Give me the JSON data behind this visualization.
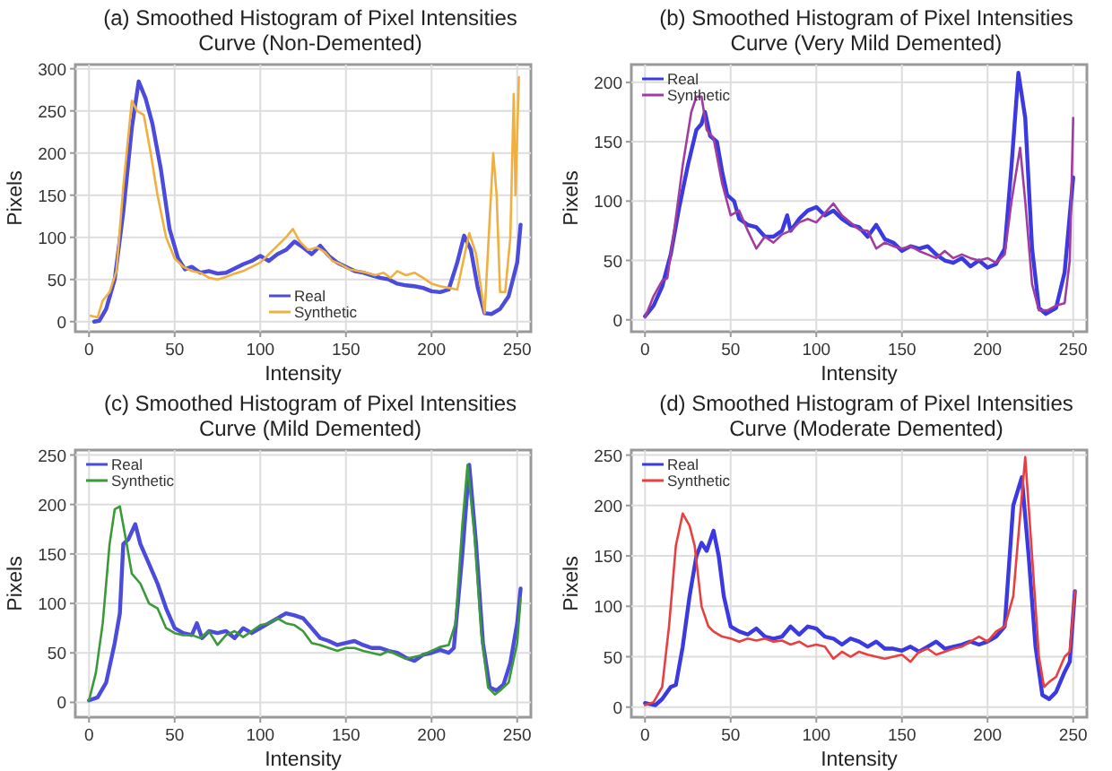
{
  "chart_data": [
    {
      "type": "line",
      "title": "(a) Smoothed Histogram of Pixel Intensities Curve (Non-Demented)",
      "xlabel": "Intensity",
      "ylabel": "Pixels",
      "xlim": [
        -8,
        258
      ],
      "ylim": [
        -12,
        305
      ],
      "xticks": [
        0,
        50,
        100,
        150,
        200,
        250
      ],
      "yticks": [
        0,
        50,
        100,
        150,
        200,
        250,
        300
      ],
      "grid": true,
      "legend": "bottom",
      "series": [
        {
          "name": "Real",
          "color": "#4b4bdc",
          "x": [
            3,
            6,
            10,
            15,
            20,
            25,
            29,
            33,
            37,
            42,
            47,
            52,
            56,
            60,
            65,
            70,
            75,
            80,
            85,
            90,
            95,
            100,
            105,
            110,
            115,
            120,
            125,
            130,
            135,
            140,
            145,
            150,
            155,
            160,
            165,
            170,
            175,
            180,
            185,
            190,
            195,
            200,
            205,
            210,
            215,
            219,
            223,
            227,
            231,
            235,
            240,
            245,
            250,
            252
          ],
          "values": [
            0,
            1,
            15,
            50,
            130,
            230,
            285,
            265,
            235,
            180,
            110,
            75,
            62,
            65,
            58,
            60,
            57,
            58,
            63,
            68,
            72,
            78,
            72,
            80,
            85,
            95,
            88,
            80,
            90,
            78,
            70,
            65,
            60,
            58,
            55,
            52,
            50,
            45,
            43,
            42,
            40,
            36,
            35,
            38,
            70,
            102,
            85,
            40,
            10,
            9,
            15,
            30,
            70,
            115
          ]
        },
        {
          "name": "Synthetic",
          "color": "#f0b040",
          "x": [
            1,
            5,
            8,
            12,
            16,
            20,
            25,
            28,
            32,
            36,
            40,
            45,
            50,
            55,
            60,
            65,
            70,
            75,
            80,
            85,
            90,
            95,
            100,
            105,
            110,
            115,
            119,
            123,
            128,
            133,
            138,
            142,
            147,
            152,
            157,
            162,
            167,
            172,
            176,
            180,
            185,
            190,
            195,
            200,
            205,
            210,
            215,
            222,
            226,
            231,
            236,
            238,
            240,
            243,
            246,
            248,
            249,
            251
          ],
          "values": [
            7,
            5,
            25,
            35,
            60,
            160,
            262,
            250,
            245,
            200,
            150,
            100,
            75,
            65,
            60,
            58,
            52,
            50,
            53,
            57,
            60,
            65,
            70,
            80,
            90,
            100,
            110,
            95,
            85,
            88,
            82,
            72,
            68,
            62,
            60,
            58,
            55,
            58,
            52,
            60,
            55,
            58,
            52,
            45,
            42,
            40,
            38,
            105,
            80,
            10,
            200,
            150,
            35,
            35,
            100,
            270,
            150,
            290
          ]
        }
      ]
    },
    {
      "type": "line",
      "title": "(b) Smoothed Histogram of Pixel Intensities Curve (Very Mild Demented)",
      "xlabel": "Intensity",
      "ylabel": "Pixels",
      "xlim": [
        -8,
        258
      ],
      "ylim": [
        -10,
        215
      ],
      "xticks": [
        0,
        50,
        100,
        150,
        200,
        250
      ],
      "yticks": [
        0,
        50,
        100,
        150,
        200
      ],
      "grid": true,
      "legend": "top left",
      "series": [
        {
          "name": "Real",
          "color": "#3a3ae0",
          "x": [
            0,
            5,
            10,
            15,
            20,
            25,
            30,
            33,
            35,
            38,
            42,
            45,
            48,
            52,
            55,
            60,
            65,
            70,
            75,
            80,
            83,
            85,
            90,
            95,
            100,
            105,
            110,
            115,
            120,
            125,
            130,
            135,
            140,
            145,
            150,
            155,
            160,
            165,
            170,
            175,
            180,
            185,
            190,
            195,
            200,
            205,
            210,
            214,
            218,
            222,
            226,
            230,
            234,
            240,
            245,
            250
          ],
          "values": [
            3,
            12,
            28,
            55,
            95,
            130,
            160,
            165,
            175,
            155,
            150,
            125,
            105,
            100,
            85,
            80,
            78,
            70,
            70,
            75,
            88,
            75,
            85,
            92,
            95,
            88,
            92,
            85,
            80,
            78,
            70,
            80,
            68,
            65,
            58,
            62,
            60,
            62,
            55,
            50,
            48,
            52,
            45,
            50,
            44,
            47,
            60,
            130,
            208,
            170,
            60,
            10,
            5,
            10,
            40,
            120
          ]
        },
        {
          "name": "Synthetic",
          "color": "#a03d9f",
          "x": [
            0,
            5,
            10,
            13,
            17,
            22,
            27,
            30,
            33,
            36,
            40,
            45,
            50,
            55,
            60,
            65,
            70,
            75,
            80,
            85,
            90,
            95,
            100,
            105,
            110,
            115,
            120,
            125,
            130,
            135,
            140,
            145,
            150,
            155,
            160,
            165,
            170,
            175,
            180,
            185,
            190,
            195,
            200,
            205,
            210,
            214,
            219,
            222,
            226,
            230,
            235,
            240,
            245,
            248,
            250
          ],
          "values": [
            2,
            20,
            33,
            35,
            75,
            130,
            175,
            188,
            188,
            160,
            153,
            115,
            88,
            92,
            75,
            60,
            70,
            65,
            72,
            75,
            82,
            85,
            82,
            90,
            98,
            88,
            82,
            76,
            75,
            60,
            65,
            62,
            60,
            62,
            58,
            55,
            52,
            58,
            52,
            55,
            52,
            50,
            52,
            48,
            55,
            100,
            145,
            100,
            30,
            8,
            8,
            12,
            14,
            50,
            170
          ]
        }
      ]
    },
    {
      "type": "line",
      "title": "(c) Smoothed Histogram of Pixel Intensities Curve (Mild Demented)",
      "xlabel": "Intensity",
      "ylabel": "Pixels",
      "xlim": [
        -8,
        258
      ],
      "ylim": [
        -15,
        255
      ],
      "xticks": [
        0,
        50,
        100,
        150,
        200,
        250
      ],
      "yticks": [
        0,
        50,
        100,
        150,
        200,
        250
      ],
      "grid": true,
      "legend": "top left",
      "series": [
        {
          "name": "Real",
          "color": "#4b4bdc",
          "x": [
            0,
            5,
            10,
            15,
            18,
            20,
            23,
            27,
            30,
            35,
            40,
            45,
            50,
            55,
            60,
            63,
            66,
            70,
            75,
            80,
            85,
            90,
            95,
            100,
            105,
            110,
            115,
            120,
            125,
            130,
            135,
            140,
            145,
            150,
            155,
            160,
            165,
            170,
            175,
            180,
            185,
            190,
            195,
            200,
            205,
            210,
            213,
            218,
            222,
            226,
            230,
            234,
            238,
            242,
            246,
            250,
            252
          ],
          "values": [
            2,
            5,
            20,
            60,
            90,
            160,
            165,
            180,
            160,
            140,
            120,
            95,
            75,
            70,
            68,
            80,
            65,
            72,
            70,
            72,
            65,
            75,
            70,
            75,
            80,
            85,
            90,
            88,
            85,
            75,
            65,
            62,
            58,
            60,
            62,
            58,
            55,
            55,
            52,
            50,
            45,
            42,
            48,
            50,
            53,
            50,
            55,
            150,
            240,
            160,
            60,
            15,
            12,
            18,
            40,
            80,
            115
          ]
        },
        {
          "name": "Synthetic",
          "color": "#3a9a3a",
          "x": [
            0,
            4,
            8,
            12,
            15,
            18,
            22,
            25,
            30,
            35,
            40,
            45,
            50,
            55,
            60,
            65,
            70,
            75,
            80,
            85,
            90,
            95,
            100,
            105,
            110,
            115,
            120,
            125,
            130,
            135,
            140,
            145,
            150,
            155,
            160,
            165,
            170,
            175,
            180,
            185,
            190,
            195,
            200,
            205,
            210,
            214,
            218,
            221,
            225,
            229,
            233,
            237,
            240,
            245,
            250,
            252
          ],
          "values": [
            2,
            30,
            80,
            160,
            195,
            198,
            160,
            130,
            120,
            100,
            95,
            75,
            70,
            68,
            68,
            65,
            72,
            58,
            68,
            72,
            66,
            72,
            78,
            80,
            85,
            80,
            78,
            72,
            60,
            58,
            55,
            52,
            55,
            55,
            52,
            50,
            48,
            52,
            48,
            44,
            46,
            48,
            52,
            56,
            58,
            80,
            180,
            240,
            170,
            70,
            15,
            8,
            12,
            20,
            60,
            105
          ]
        }
      ]
    },
    {
      "type": "line",
      "title": "(d) Smoothed Histogram of Pixel Intensities Curve (Moderate Demented)",
      "xlabel": "Intensity",
      "ylabel": "Pixels",
      "xlim": [
        -8,
        258
      ],
      "ylim": [
        -10,
        255
      ],
      "xticks": [
        0,
        50,
        100,
        150,
        200,
        250
      ],
      "yticks": [
        0,
        50,
        100,
        150,
        200,
        250
      ],
      "grid": true,
      "legend": "top left",
      "series": [
        {
          "name": "Real",
          "color": "#3a3ae0",
          "x": [
            0,
            3,
            6,
            10,
            15,
            18,
            22,
            26,
            30,
            33,
            36,
            40,
            43,
            46,
            50,
            55,
            60,
            65,
            70,
            75,
            80,
            85,
            90,
            95,
            100,
            105,
            110,
            115,
            120,
            125,
            130,
            135,
            140,
            145,
            150,
            155,
            160,
            165,
            170,
            175,
            180,
            185,
            190,
            195,
            200,
            205,
            210,
            215,
            220,
            224,
            228,
            232,
            236,
            240,
            245,
            248,
            251
          ],
          "values": [
            4,
            3,
            2,
            8,
            20,
            22,
            60,
            110,
            150,
            163,
            155,
            175,
            150,
            110,
            80,
            75,
            72,
            78,
            70,
            68,
            70,
            80,
            72,
            80,
            78,
            70,
            68,
            62,
            68,
            65,
            60,
            65,
            58,
            58,
            56,
            60,
            55,
            60,
            65,
            58,
            60,
            62,
            65,
            62,
            65,
            70,
            80,
            200,
            228,
            150,
            60,
            12,
            8,
            15,
            35,
            45,
            115
          ]
        },
        {
          "name": "Synthetic",
          "color": "#e84040",
          "x": [
            0,
            5,
            10,
            14,
            18,
            22,
            26,
            29,
            33,
            37,
            40,
            45,
            50,
            55,
            60,
            65,
            70,
            75,
            80,
            85,
            90,
            95,
            100,
            105,
            110,
            115,
            120,
            125,
            130,
            135,
            140,
            145,
            150,
            155,
            160,
            165,
            170,
            175,
            180,
            185,
            190,
            195,
            200,
            205,
            210,
            215,
            219,
            222,
            226,
            230,
            233,
            236,
            240,
            245,
            248,
            251
          ],
          "values": [
            2,
            5,
            20,
            80,
            160,
            192,
            180,
            160,
            100,
            80,
            75,
            70,
            68,
            65,
            68,
            66,
            68,
            65,
            66,
            62,
            65,
            60,
            62,
            60,
            48,
            55,
            50,
            55,
            52,
            50,
            48,
            50,
            52,
            45,
            55,
            58,
            52,
            55,
            58,
            60,
            65,
            70,
            65,
            75,
            80,
            110,
            190,
            248,
            150,
            50,
            20,
            25,
            30,
            50,
            55,
            115
          ]
        }
      ]
    }
  ]
}
